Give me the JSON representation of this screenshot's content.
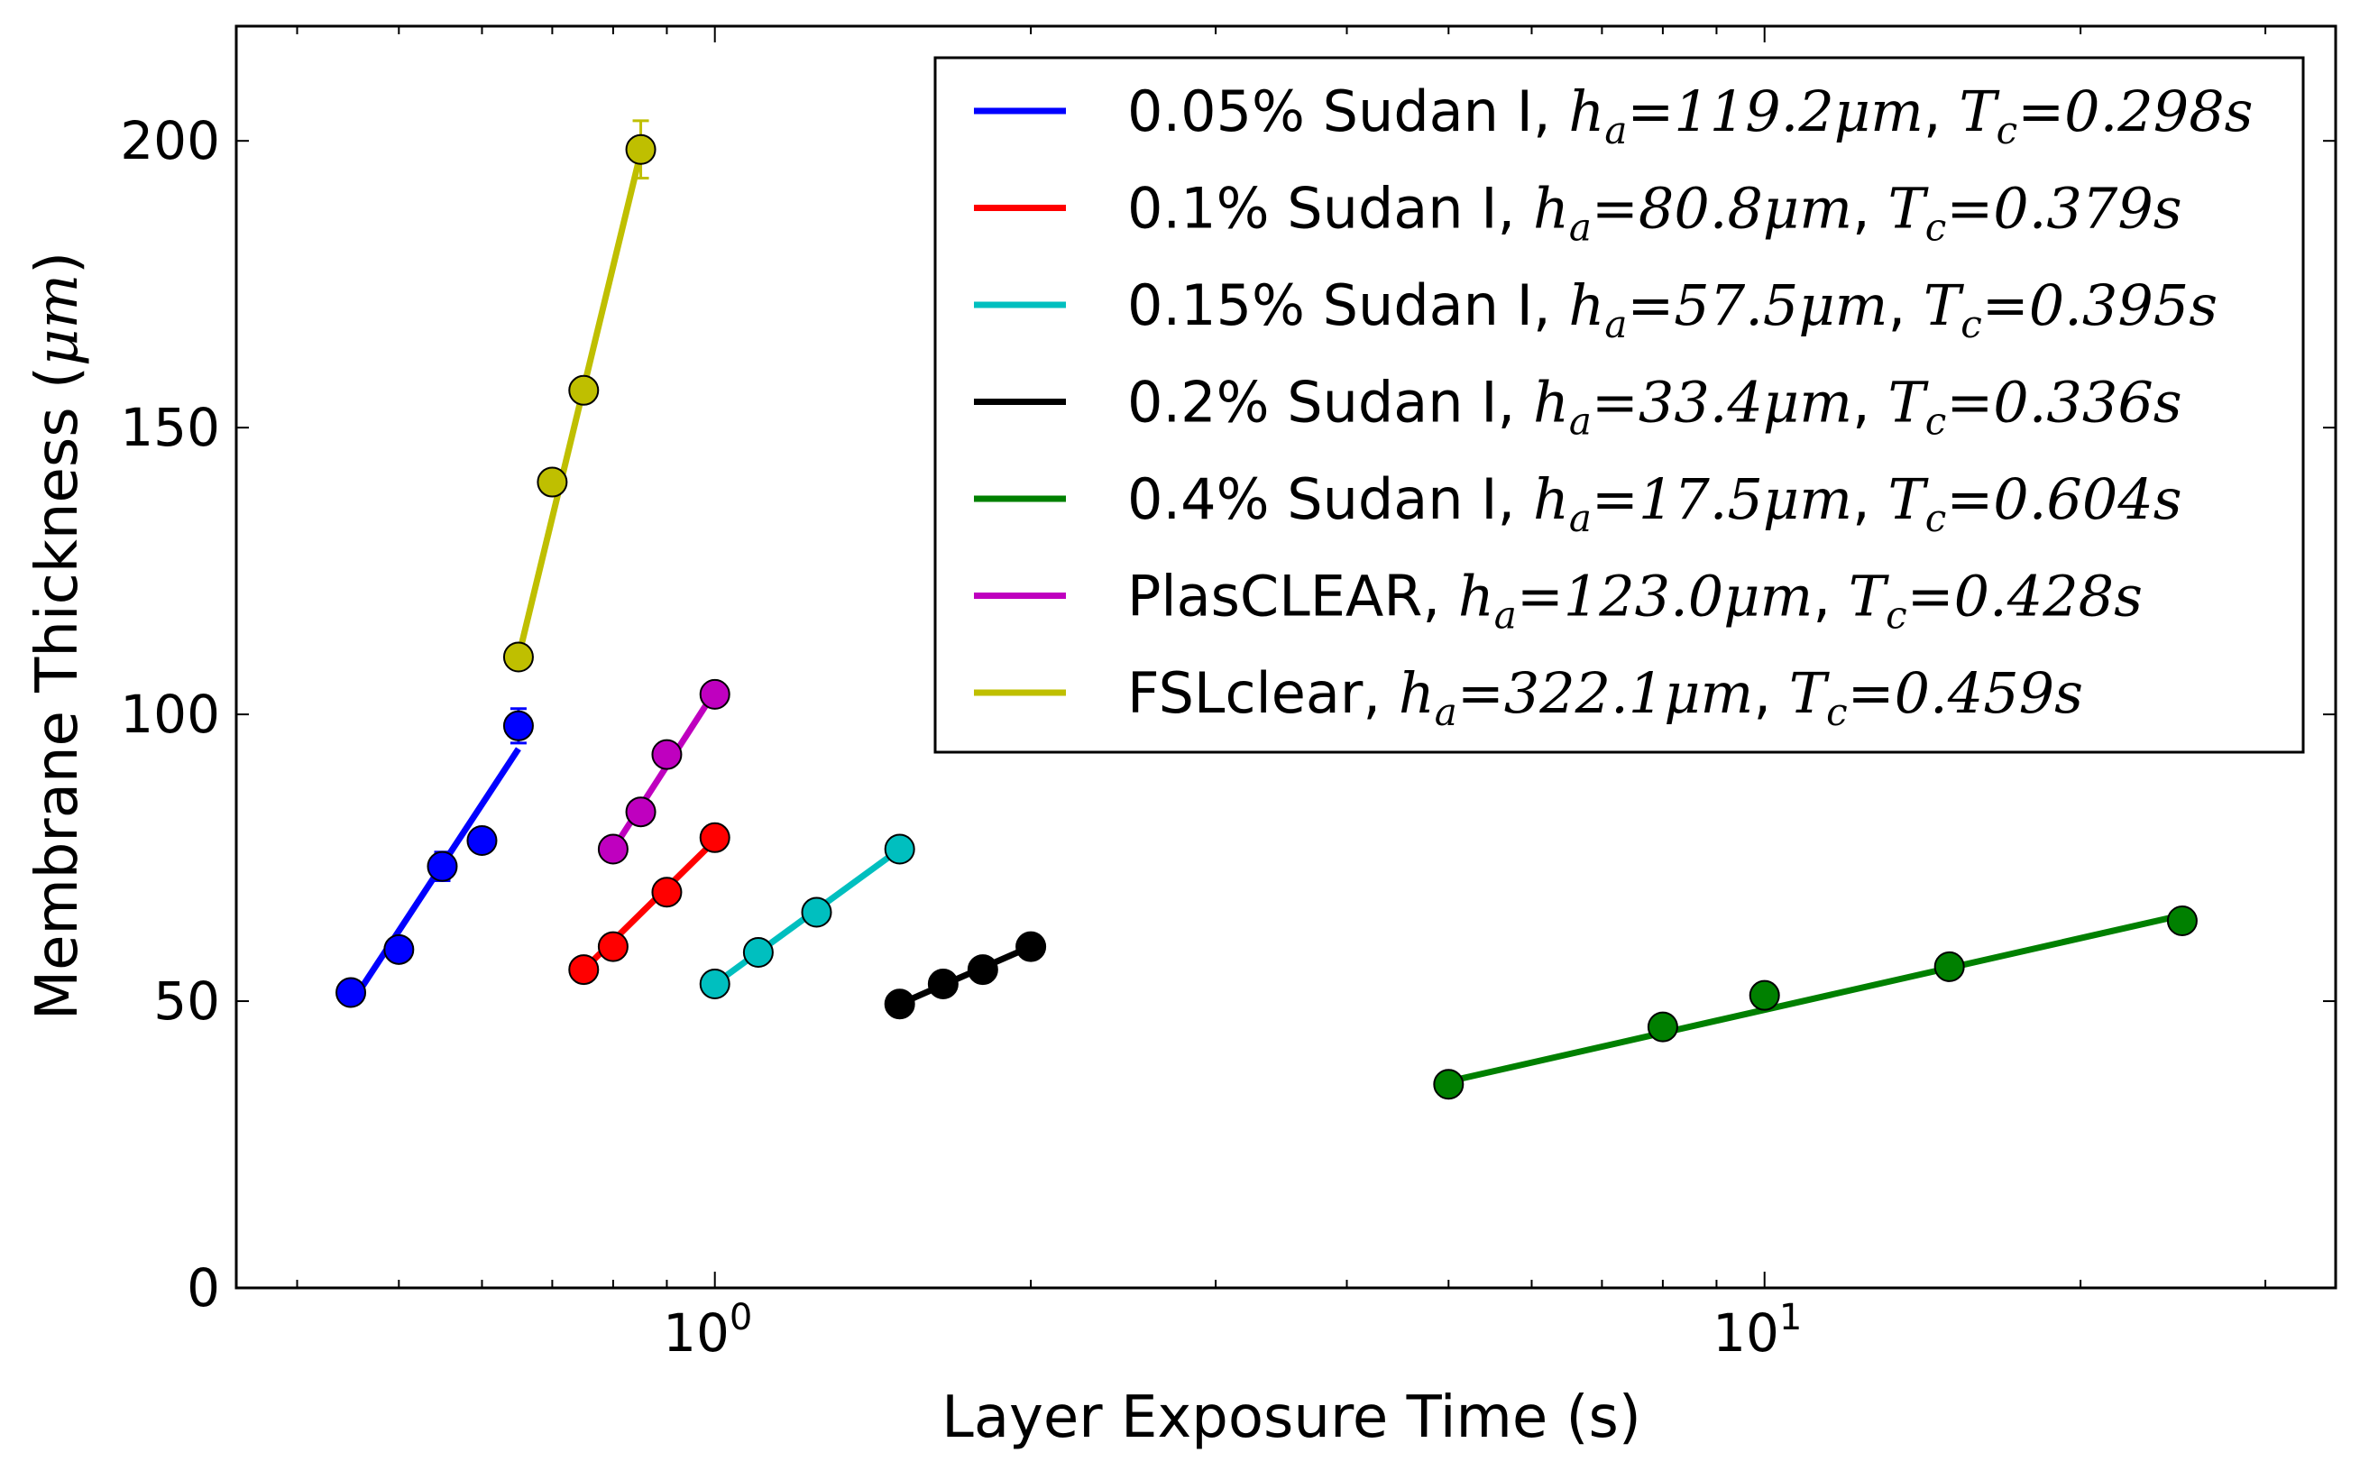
{
  "chart_data": {
    "type": "scatter",
    "xlabel": "Layer Exposure Time (s)",
    "ylabel": "Membrane Thickness (",
    "ylabel_unit": "μm",
    "ylabel_close": ")",
    "xscale": "log",
    "xlim": [
      0.35,
      35
    ],
    "ylim": [
      0,
      220
    ],
    "y_ticks": [
      "0",
      "50",
      "100",
      "150",
      "200"
    ],
    "x_ticks": [
      {
        "value": 1,
        "base": "10",
        "exp": "0"
      },
      {
        "value": 10,
        "base": "10",
        "exp": "1"
      }
    ],
    "legend_position": "top-right",
    "grid": false,
    "series": [
      {
        "name": "0.05% Sudan I, ",
        "ha": "h",
        "ha_sub": "a",
        "ha_val": "=119.2μm",
        "tc": "T",
        "tc_sub": "c",
        "tc_val": "=0.298s",
        "comma": ", ",
        "color": "#0000ff",
        "x": [
          0.45,
          0.5,
          0.55,
          0.6,
          0.65
        ],
        "y": [
          51.5,
          59,
          73.5,
          78,
          98
        ],
        "err": [
          2,
          1.5,
          2.5,
          1.5,
          3
        ],
        "fit_x": [
          0.45,
          0.65
        ],
        "fit_y": [
          49.5,
          94
        ]
      },
      {
        "name": "0.1% Sudan I, ",
        "ha": "h",
        "ha_sub": "a",
        "ha_val": "=80.8μm",
        "tc": "T",
        "tc_sub": "c",
        "tc_val": "=0.379s",
        "comma": ", ",
        "color": "#ff0000",
        "x": [
          0.75,
          0.8,
          0.9,
          1.0
        ],
        "y": [
          55.5,
          59.5,
          69,
          78.5
        ],
        "err": [
          1,
          1,
          1,
          1
        ],
        "fit_x": [
          0.75,
          1.0
        ],
        "fit_y": [
          55.5,
          78
        ]
      },
      {
        "name": "0.15% Sudan I, ",
        "ha": "h",
        "ha_sub": "a",
        "ha_val": "=57.5μm",
        "tc": "T",
        "tc_sub": "c",
        "tc_val": "=0.395s",
        "comma": ", ",
        "color": "#00bfbf",
        "x": [
          1.0,
          1.1,
          1.25,
          1.5
        ],
        "y": [
          53,
          58.5,
          65.5,
          76.5
        ],
        "err": [
          1,
          1,
          1,
          1
        ],
        "fit_x": [
          1.0,
          1.5
        ],
        "fit_y": [
          53,
          76.5
        ]
      },
      {
        "name": "0.2% Sudan I, ",
        "ha": "h",
        "ha_sub": "a",
        "ha_val": "=33.4μm",
        "tc": "T",
        "tc_sub": "c",
        "tc_val": "=0.336s",
        "comma": ", ",
        "color": "#000000",
        "x": [
          1.5,
          1.65,
          1.8,
          2.0
        ],
        "y": [
          49.5,
          53,
          55.5,
          59.5
        ],
        "err": [
          1,
          1,
          1,
          1
        ],
        "fit_x": [
          1.5,
          2.0
        ],
        "fit_y": [
          49.5,
          59.5
        ]
      },
      {
        "name": "0.4% Sudan I, ",
        "ha": "h",
        "ha_sub": "a",
        "ha_val": "=17.5μm",
        "tc": "T",
        "tc_sub": "c",
        "tc_val": "=0.604s",
        "comma": ", ",
        "color": "#008000",
        "x": [
          5,
          8,
          10,
          15,
          25
        ],
        "y": [
          35.5,
          45.5,
          51,
          56,
          64
        ],
        "err": [
          1,
          1,
          1,
          1,
          1
        ],
        "fit_x": [
          5,
          25
        ],
        "fit_y": [
          36,
          65
        ]
      },
      {
        "name": "PlasCLEAR, ",
        "ha": "h",
        "ha_sub": "a",
        "ha_val": "=123.0μm",
        "tc": "T",
        "tc_sub": "c",
        "tc_val": "=0.428s",
        "comma": ", ",
        "color": "#bf00bf",
        "x": [
          0.8,
          0.85,
          0.9,
          1.0
        ],
        "y": [
          76.5,
          83,
          93,
          103.5
        ],
        "err": [
          1,
          1,
          1,
          1
        ],
        "fit_x": [
          0.8,
          1.0
        ],
        "fit_y": [
          76.5,
          104
        ]
      },
      {
        "name": "FSLclear, ",
        "ha": "h",
        "ha_sub": "a",
        "ha_val": "=322.1μm",
        "tc": "T",
        "tc_sub": "c",
        "tc_val": "=0.459s",
        "comma": ", ",
        "color": "#bfbf00",
        "x": [
          0.65,
          0.7,
          0.75,
          0.85
        ],
        "y": [
          110,
          140.5,
          156.5,
          198.5
        ],
        "err": [
          1,
          1,
          2,
          5
        ],
        "fit_x": [
          0.65,
          0.85
        ],
        "fit_y": [
          110,
          198
        ]
      }
    ]
  }
}
